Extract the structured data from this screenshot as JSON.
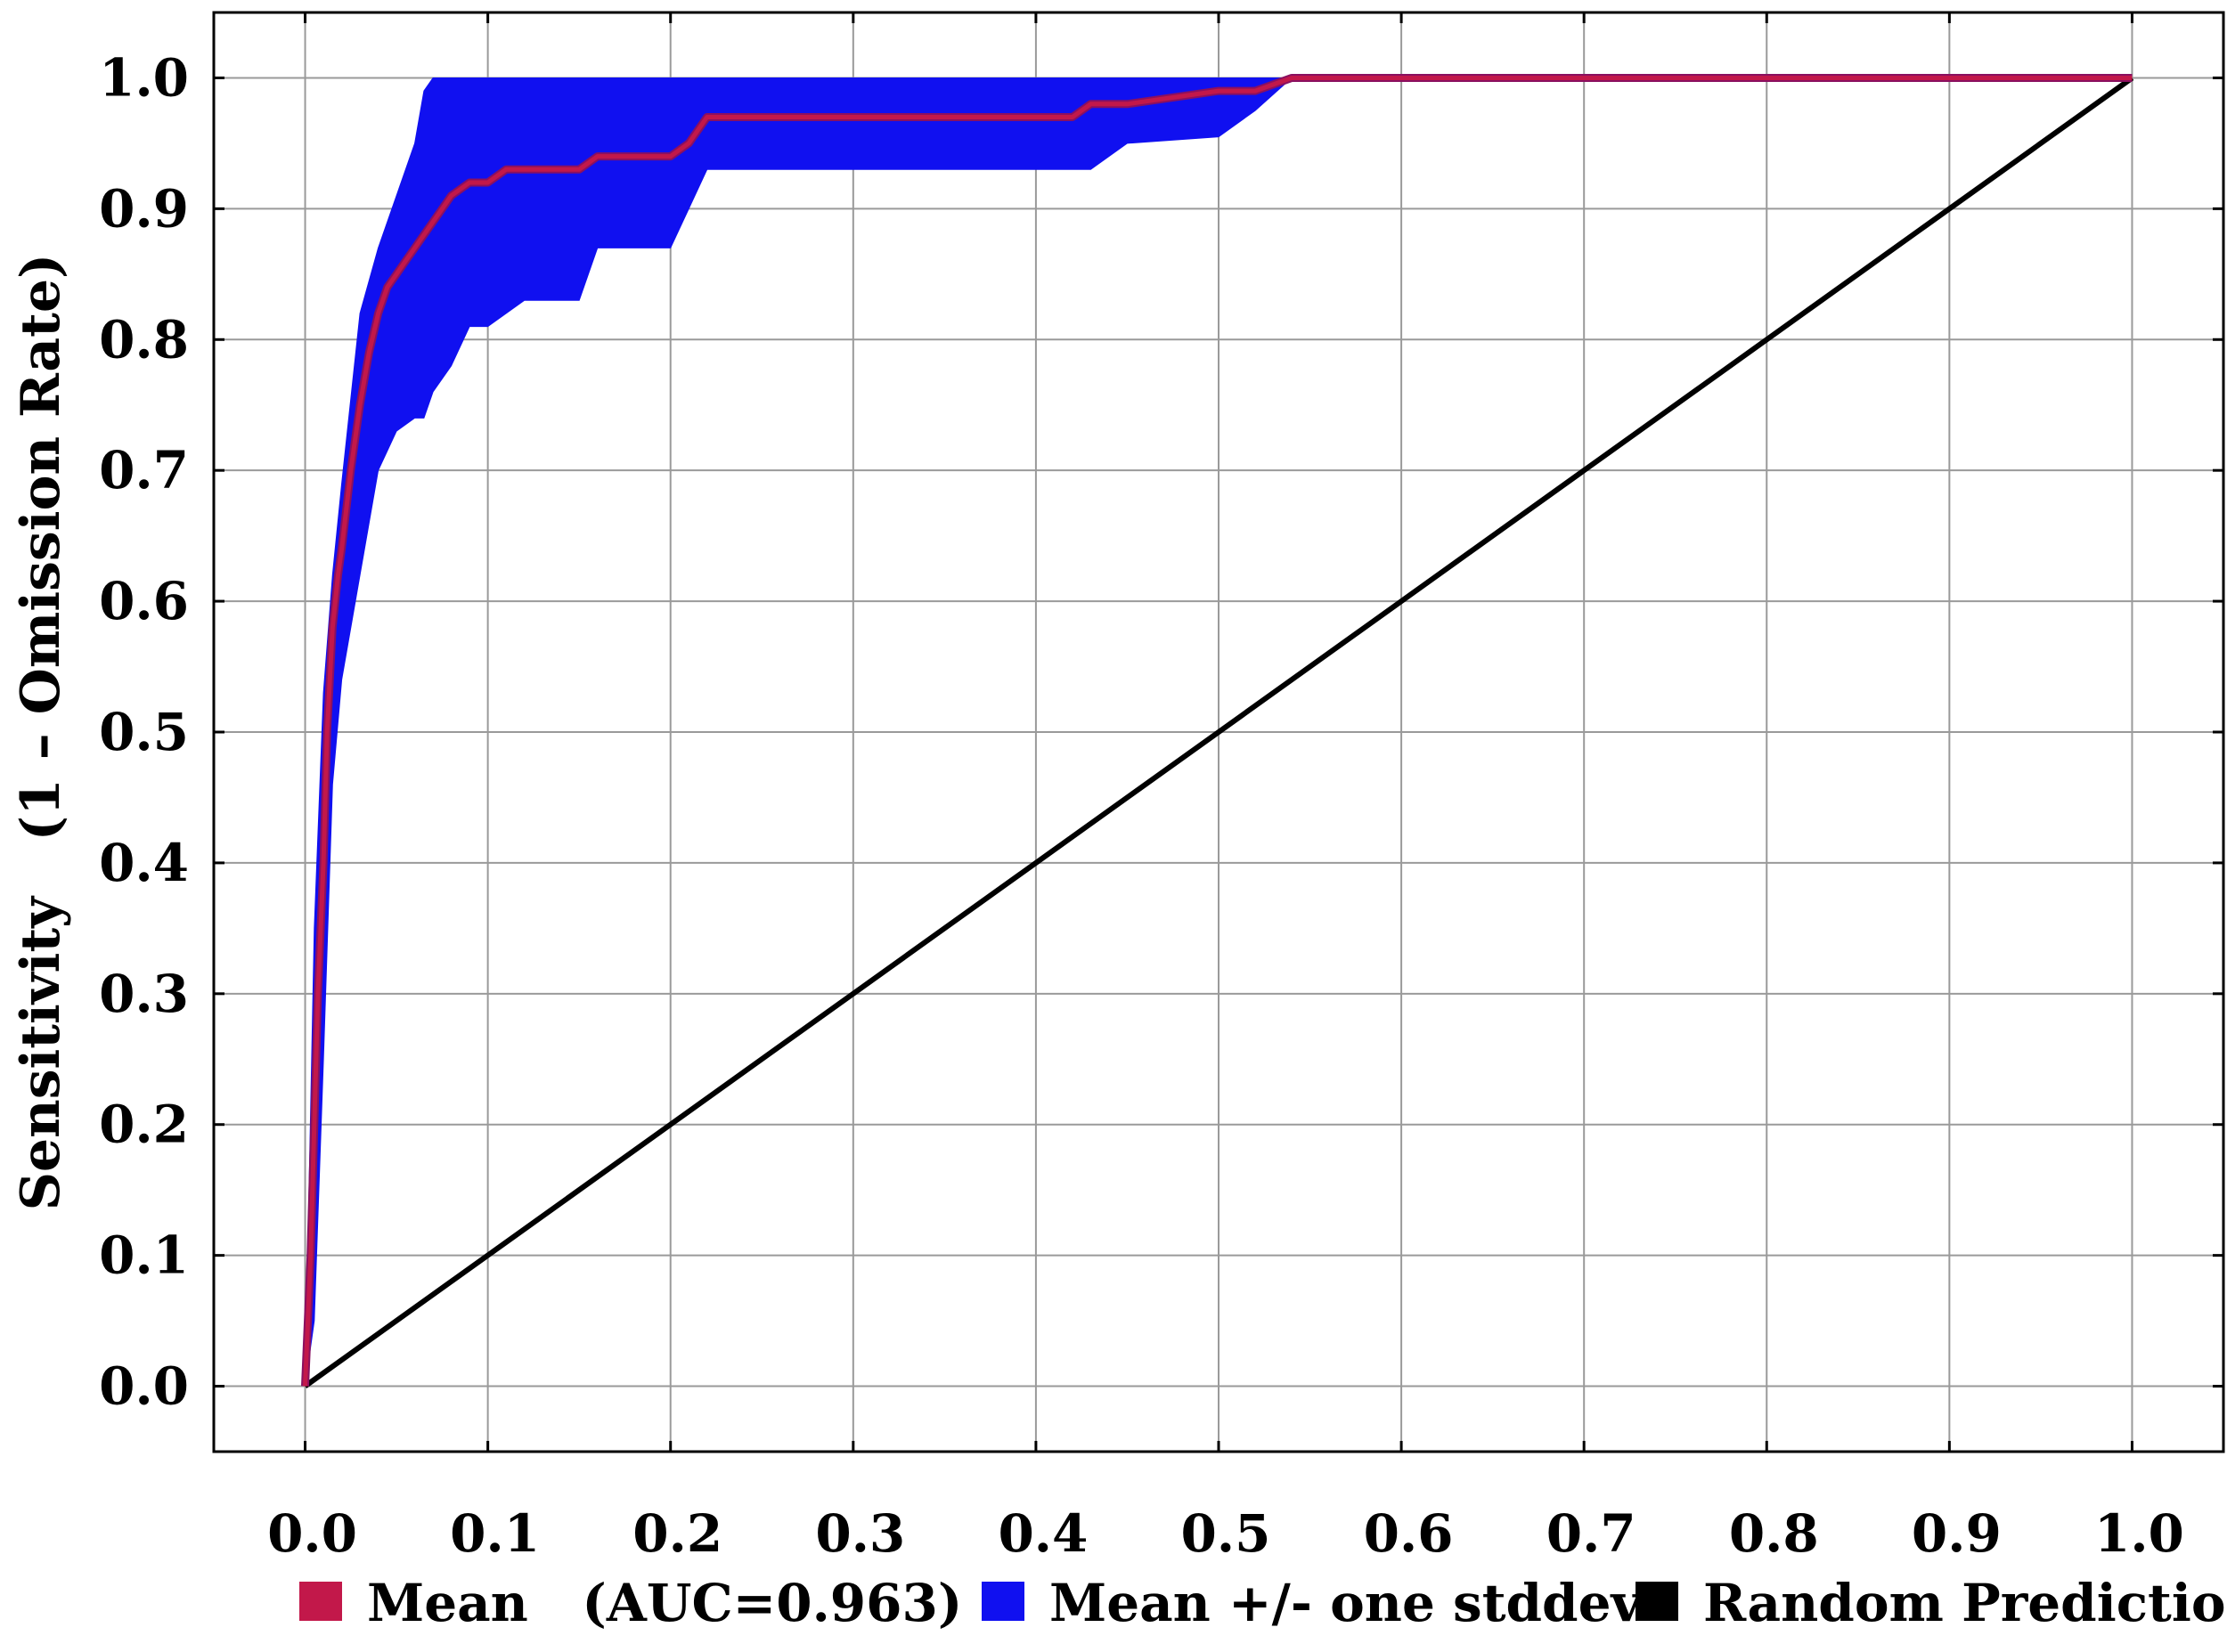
{
  "chart_data": {
    "type": "line",
    "title": "",
    "xlabel": "",
    "ylabel": "Sensitivity   (1 – Omission Rate)",
    "xlim": [
      -0.05,
      1.05
    ],
    "ylim": [
      -0.05,
      1.05
    ],
    "grid": true,
    "legend_position": "bottom",
    "x_ticks": [
      "0.0",
      "0.1",
      "0.2",
      "0.3",
      "0.4",
      "0.5",
      "0.6",
      "0.7",
      "0.8",
      "0.9",
      "1.0"
    ],
    "y_ticks": [
      "0.0",
      "0.1",
      "0.2",
      "0.3",
      "0.4",
      "0.5",
      "0.6",
      "0.7",
      "0.8",
      "0.9",
      "1.0"
    ],
    "series": [
      {
        "name": "Mean   (AUC=0.963)",
        "color": "#c2184a",
        "kind": "line",
        "x": [
          0.0,
          0.003,
          0.005,
          0.007,
          0.01,
          0.012,
          0.015,
          0.018,
          0.02,
          0.025,
          0.03,
          0.035,
          0.04,
          0.045,
          0.05,
          0.055,
          0.06,
          0.065,
          0.07,
          0.075,
          0.08,
          0.09,
          0.1,
          0.11,
          0.12,
          0.15,
          0.16,
          0.2,
          0.21,
          0.22,
          0.25,
          0.3,
          0.4,
          0.42,
          0.43,
          0.45,
          0.5,
          0.52,
          0.54,
          1.0
        ],
        "y": [
          0.0,
          0.1,
          0.2,
          0.3,
          0.4,
          0.5,
          0.58,
          0.62,
          0.64,
          0.7,
          0.75,
          0.79,
          0.82,
          0.84,
          0.85,
          0.86,
          0.87,
          0.88,
          0.89,
          0.9,
          0.91,
          0.92,
          0.92,
          0.93,
          0.93,
          0.93,
          0.94,
          0.94,
          0.95,
          0.97,
          0.97,
          0.97,
          0.97,
          0.97,
          0.98,
          0.98,
          0.99,
          0.99,
          1.0,
          1.0
        ]
      },
      {
        "name": "Mean +/- one stddev",
        "color": "#1010f0",
        "kind": "band",
        "x": [
          0.0,
          0.005,
          0.01,
          0.015,
          0.02,
          0.03,
          0.04,
          0.05,
          0.06,
          0.065,
          0.07,
          0.08,
          0.09,
          0.1,
          0.12,
          0.15,
          0.16,
          0.2,
          0.21,
          0.22,
          0.3,
          0.43,
          0.45,
          0.5,
          0.52,
          0.54,
          1.0
        ],
        "upper": [
          0.0,
          0.35,
          0.53,
          0.62,
          0.69,
          0.82,
          0.87,
          0.91,
          0.95,
          0.99,
          1.0,
          1.0,
          1.0,
          1.0,
          1.0,
          1.0,
          1.0,
          1.0,
          1.0,
          1.0,
          1.0,
          1.0,
          1.0,
          1.0,
          1.0,
          1.0,
          1.0
        ],
        "lower": [
          0.0,
          0.05,
          0.25,
          0.46,
          0.54,
          0.62,
          0.7,
          0.73,
          0.74,
          0.74,
          0.76,
          0.78,
          0.81,
          0.81,
          0.83,
          0.83,
          0.87,
          0.87,
          0.9,
          0.93,
          0.93,
          0.93,
          0.95,
          0.955,
          0.975,
          1.0,
          1.0
        ]
      },
      {
        "name": "Random Prediction",
        "color": "#000000",
        "kind": "line",
        "x": [
          0.0,
          1.0
        ],
        "y": [
          0.0,
          1.0
        ]
      }
    ]
  }
}
